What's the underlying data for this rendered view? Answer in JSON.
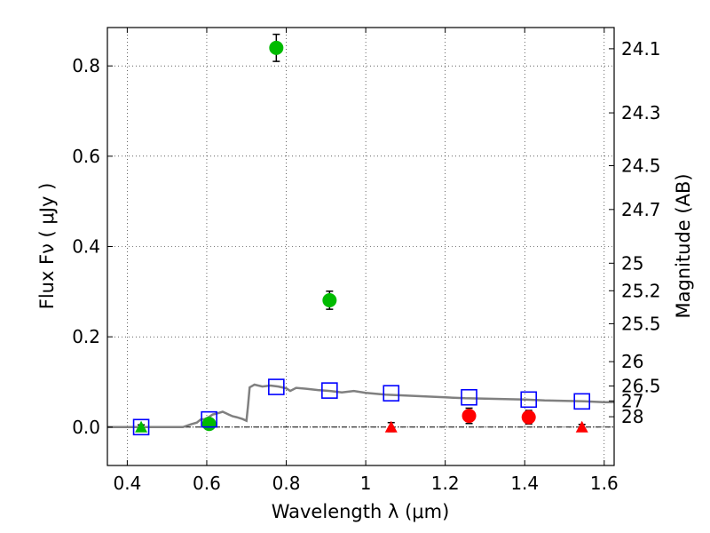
{
  "chart_data": {
    "type": "scatter",
    "xlabel": "Wavelength  λ (μm)",
    "ylabel": "Flux  Fν  ( μJy )",
    "ylabel_right": "Magnitude (AB)",
    "xlim": [
      0.35,
      1.625
    ],
    "ylim": [
      -0.085,
      0.885
    ],
    "x_ticks": [
      0.4,
      0.6,
      0.8,
      1.0,
      1.2,
      1.4,
      1.6
    ],
    "x_tick_labels": [
      "0.4",
      "0.6",
      "0.8",
      "1",
      "1.2",
      "1.4",
      "1.6"
    ],
    "y_ticks": [
      0.0,
      0.2,
      0.4,
      0.6,
      0.8
    ],
    "y_tick_labels": [
      "0.0",
      "0.2",
      "0.4",
      "0.6",
      "0.8"
    ],
    "right_ticks": [
      {
        "label": "24.1",
        "flux": 0.838
      },
      {
        "label": "24.3",
        "flux": 0.696
      },
      {
        "label": "24.5",
        "flux": 0.579
      },
      {
        "label": "24.7",
        "flux": 0.482
      },
      {
        "label": "25",
        "flux": 0.363
      },
      {
        "label": "25.2",
        "flux": 0.302
      },
      {
        "label": "25.5",
        "flux": 0.229
      },
      {
        "label": "26",
        "flux": 0.145
      },
      {
        "label": "26.5",
        "flux": 0.091
      },
      {
        "label": "27",
        "flux": 0.058
      },
      {
        "label": "28",
        "flux": 0.023
      }
    ],
    "grid": true,
    "series": [
      {
        "marker": "circle",
        "color": "#00bb00",
        "points": [
          {
            "x": 0.606,
            "y": 0.007,
            "err": 0.008
          },
          {
            "x": 0.775,
            "y": 0.84,
            "err": 0.03
          },
          {
            "x": 0.909,
            "y": 0.281,
            "err": 0.02
          }
        ]
      },
      {
        "marker": "circle",
        "color": "#ff0000",
        "points": [
          {
            "x": 1.26,
            "y": 0.025,
            "err": 0.017
          },
          {
            "x": 1.41,
            "y": 0.022,
            "err": 0.015
          }
        ]
      },
      {
        "marker": "triangle",
        "color": "#00bb00",
        "points": [
          {
            "x": 0.435,
            "y": 0.0,
            "err": 0.005
          }
        ]
      },
      {
        "marker": "triangle",
        "color": "#ff0000",
        "points": [
          {
            "x": 1.064,
            "y": 0.0,
            "err": 0.01
          },
          {
            "x": 1.544,
            "y": 0.0,
            "err": 0.006
          }
        ]
      },
      {
        "marker": "square-open",
        "color": "#0000ff",
        "points": [
          {
            "x": 0.435,
            "y": 0.0
          },
          {
            "x": 0.606,
            "y": 0.017
          },
          {
            "x": 0.775,
            "y": 0.089
          },
          {
            "x": 0.909,
            "y": 0.081
          },
          {
            "x": 1.064,
            "y": 0.075
          },
          {
            "x": 1.26,
            "y": 0.066
          },
          {
            "x": 1.41,
            "y": 0.061
          },
          {
            "x": 1.544,
            "y": 0.057
          }
        ]
      },
      {
        "marker": "line",
        "color": "#808080",
        "points": [
          {
            "x": 0.35,
            "y": 0.0
          },
          {
            "x": 0.54,
            "y": 0.0
          },
          {
            "x": 0.56,
            "y": 0.006
          },
          {
            "x": 0.575,
            "y": 0.01
          },
          {
            "x": 0.585,
            "y": 0.017
          },
          {
            "x": 0.595,
            "y": 0.018
          },
          {
            "x": 0.605,
            "y": 0.022
          },
          {
            "x": 0.615,
            "y": 0.028
          },
          {
            "x": 0.625,
            "y": 0.03
          },
          {
            "x": 0.64,
            "y": 0.034
          },
          {
            "x": 0.655,
            "y": 0.028
          },
          {
            "x": 0.665,
            "y": 0.024
          },
          {
            "x": 0.675,
            "y": 0.022
          },
          {
            "x": 0.69,
            "y": 0.018
          },
          {
            "x": 0.7,
            "y": 0.014
          },
          {
            "x": 0.704,
            "y": 0.048
          },
          {
            "x": 0.708,
            "y": 0.088
          },
          {
            "x": 0.72,
            "y": 0.094
          },
          {
            "x": 0.74,
            "y": 0.09
          },
          {
            "x": 0.76,
            "y": 0.092
          },
          {
            "x": 0.78,
            "y": 0.09
          },
          {
            "x": 0.8,
            "y": 0.086
          },
          {
            "x": 0.81,
            "y": 0.08
          },
          {
            "x": 0.825,
            "y": 0.087
          },
          {
            "x": 0.85,
            "y": 0.085
          },
          {
            "x": 0.88,
            "y": 0.082
          },
          {
            "x": 0.91,
            "y": 0.08
          },
          {
            "x": 0.94,
            "y": 0.077
          },
          {
            "x": 0.97,
            "y": 0.08
          },
          {
            "x": 1.0,
            "y": 0.076
          },
          {
            "x": 1.05,
            "y": 0.072
          },
          {
            "x": 1.1,
            "y": 0.07
          },
          {
            "x": 1.15,
            "y": 0.068
          },
          {
            "x": 1.2,
            "y": 0.066
          },
          {
            "x": 1.25,
            "y": 0.064
          },
          {
            "x": 1.3,
            "y": 0.063
          },
          {
            "x": 1.35,
            "y": 0.062
          },
          {
            "x": 1.4,
            "y": 0.061
          },
          {
            "x": 1.45,
            "y": 0.059
          },
          {
            "x": 1.5,
            "y": 0.058
          },
          {
            "x": 1.55,
            "y": 0.057
          },
          {
            "x": 1.6,
            "y": 0.055
          },
          {
            "x": 1.625,
            "y": 0.055
          }
        ]
      }
    ]
  }
}
